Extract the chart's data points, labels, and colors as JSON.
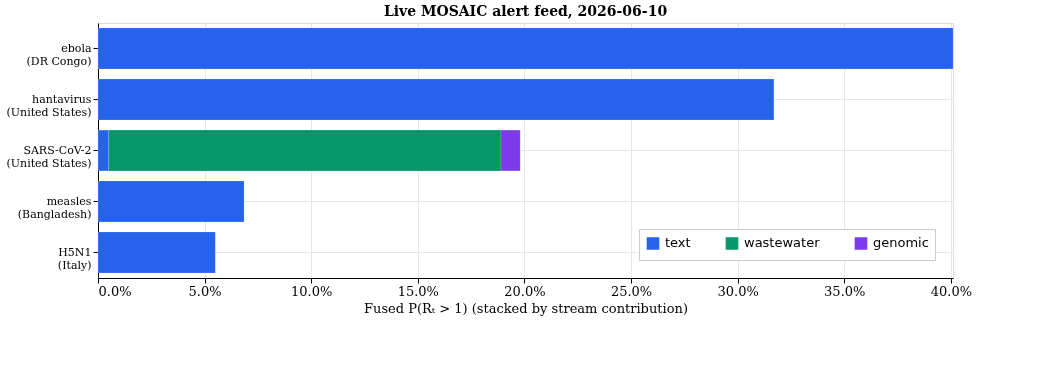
{
  "chart_data": {
    "type": "bar",
    "orientation": "horizontal",
    "stacked": true,
    "title": "Live MOSAIC alert feed, 2026-06-10",
    "xlabel": "Fused P(Rₜ > 1) (stacked by stream contribution)",
    "categories": [
      "ebola\n(DR Congo)",
      "hantavirus\n(United States)",
      "SARS-CoV-2\n(United States)",
      "measles\n(Bangladesh)",
      "H5N1\n(Italy)"
    ],
    "series": [
      {
        "name": "text",
        "color": "#2563eb",
        "values": [
          40.1,
          31.7,
          0.5,
          6.85,
          5.5
        ]
      },
      {
        "name": "wastewater",
        "color": "#059669",
        "values": [
          null,
          null,
          18.4,
          null,
          null
        ]
      },
      {
        "name": "genomic",
        "color": "#7c3aed",
        "values": [
          null,
          null,
          0.9,
          null,
          null
        ]
      }
    ],
    "xlim": [
      0,
      40.1
    ],
    "xticks": [
      {
        "value": 0,
        "label": "0.0%"
      },
      {
        "value": 5,
        "label": "5.0%"
      },
      {
        "value": 10,
        "label": "10.0%"
      },
      {
        "value": 15,
        "label": "15.0%"
      },
      {
        "value": 20,
        "label": "20.0%"
      },
      {
        "value": 25,
        "label": "25.0%"
      },
      {
        "value": 30,
        "label": "30.0%"
      },
      {
        "value": 35,
        "label": "35.0%"
      },
      {
        "value": 40,
        "label": "40.0%"
      }
    ],
    "grid": true,
    "legend": "bottom right"
  }
}
